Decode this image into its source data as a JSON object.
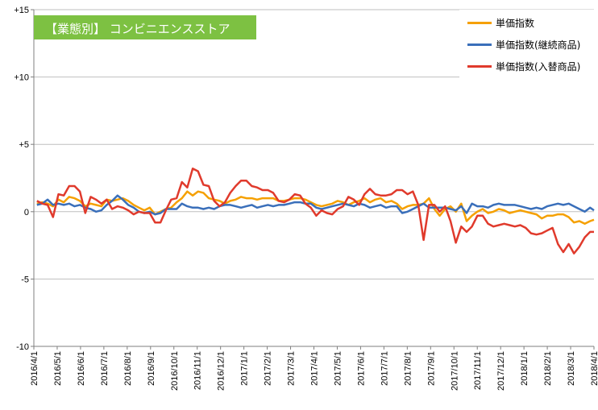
{
  "chart_data": {
    "type": "line",
    "title": "【業態別】 コンビニエンスストア",
    "ylim": [
      -10,
      15
    ],
    "yticks": [
      {
        "value": 15,
        "label": "+15"
      },
      {
        "value": 10,
        "label": "+10"
      },
      {
        "value": 5,
        "label": "+5"
      },
      {
        "value": 0,
        "label": "0"
      },
      {
        "value": -5,
        "label": "-5"
      },
      {
        "value": -10,
        "label": "-10"
      }
    ],
    "xlim": [
      "2016-04-01",
      "2018-04-01"
    ],
    "xticks": [
      "2016/4/1",
      "2016/5/1",
      "2016/6/1",
      "2016/7/1",
      "2016/8/1",
      "2016/9/1",
      "2016/10/1",
      "2016/11/1",
      "2016/12/1",
      "2017/1/1",
      "2017/2/1",
      "2017/3/1",
      "2017/4/1",
      "2017/5/1",
      "2017/6/1",
      "2017/7/1",
      "2017/8/1",
      "2017/9/1",
      "2017/10/1",
      "2017/11/1",
      "2017/12/1",
      "2018/1/1",
      "2018/2/1",
      "2018/3/1",
      "2018/4/1"
    ],
    "legend_position": "top-right",
    "series": [
      {
        "name": "単価指数",
        "color": "#f5a000",
        "x": [
          "2016-04-05",
          "2016-04-12",
          "2016-04-19",
          "2016-04-26",
          "2016-05-03",
          "2016-05-10",
          "2016-05-17",
          "2016-05-24",
          "2016-05-31",
          "2016-06-07",
          "2016-06-14",
          "2016-06-21",
          "2016-06-28",
          "2016-07-05",
          "2016-07-12",
          "2016-07-19",
          "2016-07-26",
          "2016-08-02",
          "2016-08-09",
          "2016-08-16",
          "2016-08-23",
          "2016-08-30",
          "2016-09-06",
          "2016-09-13",
          "2016-09-20",
          "2016-09-27",
          "2016-10-04",
          "2016-10-11",
          "2016-10-18",
          "2016-10-25",
          "2016-11-01",
          "2016-11-08",
          "2016-11-15",
          "2016-11-22",
          "2016-11-29",
          "2016-12-06",
          "2016-12-13",
          "2016-12-20",
          "2016-12-27",
          "2017-01-03",
          "2017-01-10",
          "2017-01-17",
          "2017-01-24",
          "2017-01-31",
          "2017-02-07",
          "2017-02-14",
          "2017-02-21",
          "2017-02-28",
          "2017-03-07",
          "2017-03-14",
          "2017-03-21",
          "2017-03-28",
          "2017-04-04",
          "2017-04-11",
          "2017-04-18",
          "2017-04-25",
          "2017-05-02",
          "2017-05-09",
          "2017-05-16",
          "2017-05-23",
          "2017-05-30",
          "2017-06-06",
          "2017-06-13",
          "2017-06-20",
          "2017-06-27",
          "2017-07-04",
          "2017-07-11",
          "2017-07-18",
          "2017-07-25",
          "2017-08-01",
          "2017-08-08",
          "2017-08-15",
          "2017-08-22",
          "2017-08-29",
          "2017-09-05",
          "2017-09-12",
          "2017-09-19",
          "2017-09-26",
          "2017-10-03",
          "2017-10-10",
          "2017-10-17",
          "2017-10-24",
          "2017-10-31",
          "2017-11-07",
          "2017-11-14",
          "2017-11-21",
          "2017-11-28",
          "2017-12-05",
          "2017-12-12",
          "2017-12-19",
          "2017-12-26",
          "2018-01-02",
          "2018-01-09",
          "2018-01-16",
          "2018-01-23",
          "2018-01-30",
          "2018-02-06",
          "2018-02-13",
          "2018-02-20",
          "2018-02-27",
          "2018-03-06",
          "2018-03-13",
          "2018-03-20",
          "2018-03-27",
          "2018-04-01"
        ],
        "y": [
          0.6,
          0.7,
          0.6,
          0.4,
          0.9,
          0.7,
          1.1,
          1.0,
          0.8,
          0.4,
          0.6,
          0.5,
          0.4,
          0.9,
          0.8,
          0.9,
          1.0,
          0.8,
          0.5,
          0.3,
          0.1,
          0.3,
          -0.2,
          0.0,
          0.2,
          0.3,
          0.7,
          1.0,
          1.5,
          1.2,
          1.5,
          1.4,
          1.0,
          0.9,
          0.8,
          0.6,
          0.8,
          0.9,
          1.1,
          1.0,
          1.0,
          0.9,
          1.0,
          1.0,
          1.0,
          0.8,
          0.8,
          0.9,
          1.0,
          1.0,
          0.9,
          0.7,
          0.5,
          0.4,
          0.5,
          0.6,
          0.8,
          0.7,
          0.5,
          0.7,
          0.8,
          1.0,
          0.7,
          0.9,
          1.0,
          0.7,
          0.8,
          0.6,
          0.2,
          0.4,
          0.5,
          0.5,
          0.6,
          1.0,
          0.2,
          -0.3,
          0.2,
          0.4,
          0.0,
          0.6,
          -0.7,
          -0.3,
          0.0,
          0.2,
          -0.1,
          0.0,
          0.2,
          0.1,
          -0.1,
          0.0,
          0.1,
          0.0,
          -0.1,
          -0.2,
          -0.5,
          -0.3,
          -0.3,
          -0.2,
          -0.2,
          -0.4,
          -0.8,
          -0.7,
          -0.9,
          -0.7,
          -0.6
        ]
      },
      {
        "name": "単価指数(継続商品)",
        "color": "#3a6fba",
        "x": [
          "2016-04-05",
          "2016-04-12",
          "2016-04-19",
          "2016-04-26",
          "2016-05-03",
          "2016-05-10",
          "2016-05-17",
          "2016-05-24",
          "2016-05-31",
          "2016-06-07",
          "2016-06-14",
          "2016-06-21",
          "2016-06-28",
          "2016-07-05",
          "2016-07-12",
          "2016-07-19",
          "2016-07-26",
          "2016-08-02",
          "2016-08-09",
          "2016-08-16",
          "2016-08-23",
          "2016-08-30",
          "2016-09-06",
          "2016-09-13",
          "2016-09-20",
          "2016-09-27",
          "2016-10-04",
          "2016-10-11",
          "2016-10-18",
          "2016-10-25",
          "2016-11-01",
          "2016-11-08",
          "2016-11-15",
          "2016-11-22",
          "2016-11-29",
          "2016-12-06",
          "2016-12-13",
          "2016-12-20",
          "2016-12-27",
          "2017-01-03",
          "2017-01-10",
          "2017-01-17",
          "2017-01-24",
          "2017-01-31",
          "2017-02-07",
          "2017-02-14",
          "2017-02-21",
          "2017-02-28",
          "2017-03-07",
          "2017-03-14",
          "2017-03-21",
          "2017-03-28",
          "2017-04-04",
          "2017-04-11",
          "2017-04-18",
          "2017-04-25",
          "2017-05-02",
          "2017-05-09",
          "2017-05-16",
          "2017-05-23",
          "2017-05-30",
          "2017-06-06",
          "2017-06-13",
          "2017-06-20",
          "2017-06-27",
          "2017-07-04",
          "2017-07-11",
          "2017-07-18",
          "2017-07-25",
          "2017-08-01",
          "2017-08-08",
          "2017-08-15",
          "2017-08-22",
          "2017-08-29",
          "2017-09-05",
          "2017-09-12",
          "2017-09-19",
          "2017-09-26",
          "2017-10-03",
          "2017-10-10",
          "2017-10-17",
          "2017-10-24",
          "2017-10-31",
          "2017-11-07",
          "2017-11-14",
          "2017-11-21",
          "2017-11-28",
          "2017-12-05",
          "2017-12-12",
          "2017-12-19",
          "2017-12-26",
          "2018-01-02",
          "2018-01-09",
          "2018-01-16",
          "2018-01-23",
          "2018-01-30",
          "2018-02-06",
          "2018-02-13",
          "2018-02-20",
          "2018-02-27",
          "2018-03-06",
          "2018-03-13",
          "2018-03-20",
          "2018-03-27",
          "2018-04-01"
        ],
        "y": [
          0.5,
          0.6,
          0.9,
          0.5,
          0.6,
          0.5,
          0.6,
          0.4,
          0.5,
          0.3,
          0.2,
          0.0,
          0.1,
          0.5,
          0.8,
          1.2,
          0.9,
          0.5,
          0.3,
          0.0,
          -0.1,
          0.0,
          -0.2,
          -0.1,
          0.2,
          0.2,
          0.2,
          0.6,
          0.4,
          0.3,
          0.3,
          0.2,
          0.3,
          0.2,
          0.4,
          0.5,
          0.5,
          0.4,
          0.3,
          0.4,
          0.5,
          0.3,
          0.4,
          0.5,
          0.4,
          0.5,
          0.5,
          0.6,
          0.7,
          0.7,
          0.6,
          0.6,
          0.3,
          0.2,
          0.3,
          0.4,
          0.5,
          0.6,
          0.5,
          0.4,
          0.6,
          0.5,
          0.3,
          0.4,
          0.5,
          0.3,
          0.4,
          0.4,
          -0.1,
          0.0,
          0.2,
          0.4,
          0.6,
          0.3,
          0.3,
          0.3,
          0.3,
          0.2,
          0.1,
          0.4,
          -0.1,
          0.6,
          0.4,
          0.4,
          0.3,
          0.5,
          0.6,
          0.5,
          0.5,
          0.5,
          0.4,
          0.3,
          0.2,
          0.3,
          0.2,
          0.4,
          0.5,
          0.6,
          0.5,
          0.6,
          0.4,
          0.2,
          0.0,
          0.3,
          0.1
        ]
      },
      {
        "name": "単価指数(入替商品)",
        "color": "#e03a2c",
        "x": [
          "2016-04-05",
          "2016-04-12",
          "2016-04-19",
          "2016-04-26",
          "2016-05-03",
          "2016-05-10",
          "2016-05-17",
          "2016-05-24",
          "2016-05-31",
          "2016-06-07",
          "2016-06-14",
          "2016-06-21",
          "2016-06-28",
          "2016-07-05",
          "2016-07-12",
          "2016-07-19",
          "2016-07-26",
          "2016-08-02",
          "2016-08-09",
          "2016-08-16",
          "2016-08-23",
          "2016-08-30",
          "2016-09-06",
          "2016-09-13",
          "2016-09-20",
          "2016-09-27",
          "2016-10-04",
          "2016-10-11",
          "2016-10-18",
          "2016-10-25",
          "2016-11-01",
          "2016-11-08",
          "2016-11-15",
          "2016-11-22",
          "2016-11-29",
          "2016-12-06",
          "2016-12-13",
          "2016-12-20",
          "2016-12-27",
          "2017-01-03",
          "2017-01-10",
          "2017-01-17",
          "2017-01-24",
          "2017-01-31",
          "2017-02-07",
          "2017-02-14",
          "2017-02-21",
          "2017-02-28",
          "2017-03-07",
          "2017-03-14",
          "2017-03-21",
          "2017-03-28",
          "2017-04-04",
          "2017-04-11",
          "2017-04-18",
          "2017-04-25",
          "2017-05-02",
          "2017-05-09",
          "2017-05-16",
          "2017-05-23",
          "2017-05-30",
          "2017-06-06",
          "2017-06-13",
          "2017-06-20",
          "2017-06-27",
          "2017-07-04",
          "2017-07-11",
          "2017-07-18",
          "2017-07-25",
          "2017-08-01",
          "2017-08-08",
          "2017-08-15",
          "2017-08-22",
          "2017-08-29",
          "2017-09-05",
          "2017-09-12",
          "2017-09-19",
          "2017-09-26",
          "2017-10-03",
          "2017-10-10",
          "2017-10-17",
          "2017-10-24",
          "2017-10-31",
          "2017-11-07",
          "2017-11-14",
          "2017-11-21",
          "2017-11-28",
          "2017-12-05",
          "2017-12-12",
          "2017-12-19",
          "2017-12-26",
          "2018-01-02",
          "2018-01-09",
          "2018-01-16",
          "2018-01-23",
          "2018-01-30",
          "2018-02-06",
          "2018-02-13",
          "2018-02-20",
          "2018-02-27",
          "2018-03-06",
          "2018-03-13",
          "2018-03-20",
          "2018-03-27",
          "2018-04-01"
        ],
        "y": [
          0.8,
          0.6,
          0.5,
          -0.4,
          1.3,
          1.2,
          1.9,
          1.9,
          1.5,
          -0.1,
          1.1,
          0.9,
          0.6,
          0.9,
          0.2,
          0.4,
          0.3,
          0.1,
          -0.2,
          0.0,
          -0.1,
          -0.1,
          -0.8,
          -0.8,
          0.1,
          0.9,
          1.0,
          2.2,
          1.8,
          3.2,
          3.0,
          2.0,
          1.9,
          0.8,
          0.4,
          0.7,
          1.4,
          1.9,
          2.3,
          2.3,
          1.9,
          1.8,
          1.6,
          1.6,
          1.4,
          0.8,
          0.7,
          0.9,
          1.3,
          1.2,
          0.6,
          0.3,
          -0.3,
          0.1,
          -0.1,
          -0.2,
          0.2,
          0.4,
          1.1,
          0.9,
          0.5,
          1.3,
          1.7,
          1.3,
          1.2,
          1.2,
          1.3,
          1.6,
          1.6,
          1.3,
          1.5,
          0.5,
          -2.1,
          0.5,
          0.5,
          0.0,
          0.4,
          -0.7,
          -2.3,
          -1.1,
          -1.5,
          -1.1,
          -0.3,
          -0.3,
          -0.9,
          -1.1,
          -1.0,
          -0.9,
          -1.0,
          -1.1,
          -1.0,
          -1.2,
          -1.6,
          -1.7,
          -1.6,
          -1.4,
          -1.2,
          -2.4,
          -3.0,
          -2.4,
          -3.1,
          -2.6,
          -1.9,
          -1.5,
          -1.5
        ]
      }
    ]
  }
}
